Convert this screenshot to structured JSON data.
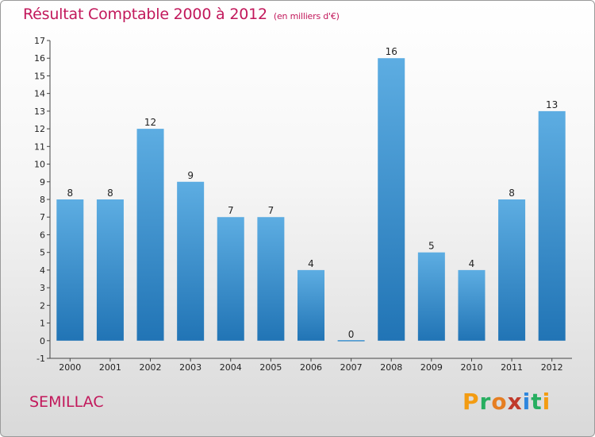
{
  "title": "Résultat Comptable 2000 à 2012",
  "unit": "(en milliers d'€)",
  "commune": "SEMILLAC",
  "logo": {
    "letters": [
      "P",
      "r",
      "o",
      "x",
      "i",
      "t",
      "i"
    ],
    "colors": [
      "#f39c12",
      "#27ae60",
      "#e67e22",
      "#c0392b",
      "#2e86de",
      "#27ae60",
      "#f39c12"
    ]
  },
  "colors": {
    "bar_top": "#5dade2",
    "bar_bottom": "#2174b5",
    "title": "#c2185b"
  },
  "chart_data": {
    "type": "bar",
    "categories": [
      "2000",
      "2001",
      "2002",
      "2003",
      "2004",
      "2005",
      "2006",
      "2007",
      "2008",
      "2009",
      "2010",
      "2011",
      "2012"
    ],
    "values": [
      8,
      8,
      12,
      9,
      7,
      7,
      4,
      0,
      16,
      5,
      4,
      8,
      13
    ],
    "data_labels": [
      "8",
      "8",
      "12",
      "9",
      "7",
      "7",
      "4",
      "0",
      "16",
      "5",
      "4",
      "8",
      "13"
    ],
    "ylim": [
      -1,
      17
    ],
    "yticks": [
      "-1",
      "0",
      "1",
      "2",
      "3",
      "4",
      "5",
      "6",
      "7",
      "8",
      "9",
      "10",
      "11",
      "12",
      "13",
      "14",
      "15",
      "16",
      "17"
    ],
    "xlabel": "",
    "ylabel": "",
    "grid": false
  }
}
